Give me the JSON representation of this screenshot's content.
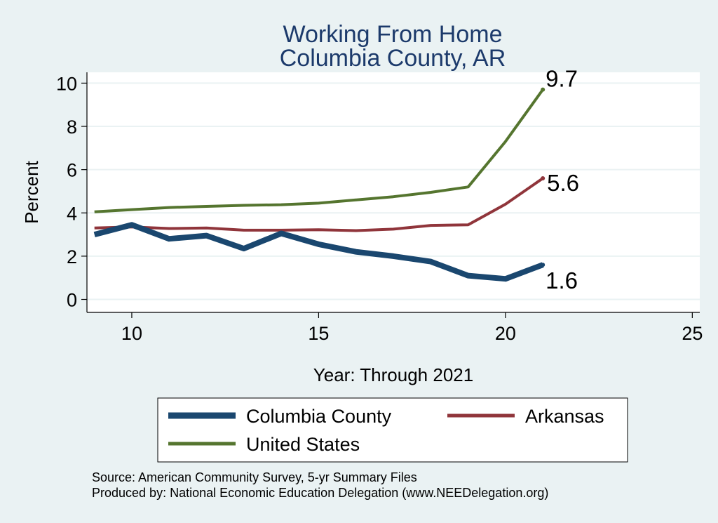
{
  "chart_data": {
    "type": "line",
    "title": [
      "Working From Home",
      "Columbia County, AR"
    ],
    "xlabel": "Year: Through 2021",
    "ylabel": "Percent",
    "xlim": [
      8.8,
      25.2
    ],
    "ylim": [
      -0.6,
      10.5
    ],
    "xticks": [
      10,
      15,
      20,
      25
    ],
    "yticks": [
      0,
      2,
      4,
      6,
      8,
      10
    ],
    "grid": true,
    "legend_position": "bottom",
    "series": [
      {
        "name": "Columbia County",
        "color": "#1a476f",
        "x": [
          9,
          10,
          11,
          12,
          13,
          14,
          15,
          16,
          17,
          18,
          19,
          20,
          21
        ],
        "values": [
          3.0,
          3.45,
          2.8,
          2.95,
          2.35,
          3.05,
          2.55,
          2.2,
          2.0,
          1.75,
          1.1,
          0.95,
          1.6
        ],
        "end_label": "1.6"
      },
      {
        "name": "Arkansas",
        "color": "#90353b",
        "x": [
          9,
          10,
          11,
          12,
          13,
          14,
          15,
          16,
          17,
          18,
          19,
          20,
          21
        ],
        "values": [
          3.3,
          3.35,
          3.28,
          3.3,
          3.2,
          3.2,
          3.22,
          3.18,
          3.25,
          3.42,
          3.45,
          4.4,
          5.6
        ],
        "end_label": "5.6"
      },
      {
        "name": "United States",
        "color": "#55752f",
        "x": [
          9,
          10,
          11,
          12,
          13,
          14,
          15,
          16,
          17,
          18,
          19,
          20,
          21
        ],
        "values": [
          4.05,
          4.15,
          4.25,
          4.3,
          4.35,
          4.38,
          4.45,
          4.6,
          4.75,
          4.95,
          5.2,
          7.3,
          9.7
        ],
        "end_label": "9.7"
      }
    ],
    "notes": [
      "Source: American Community Survey, 5-yr Summary Files",
      "Produced by: National Economic Education Delegation (www.NEEDelegation.org)"
    ]
  }
}
